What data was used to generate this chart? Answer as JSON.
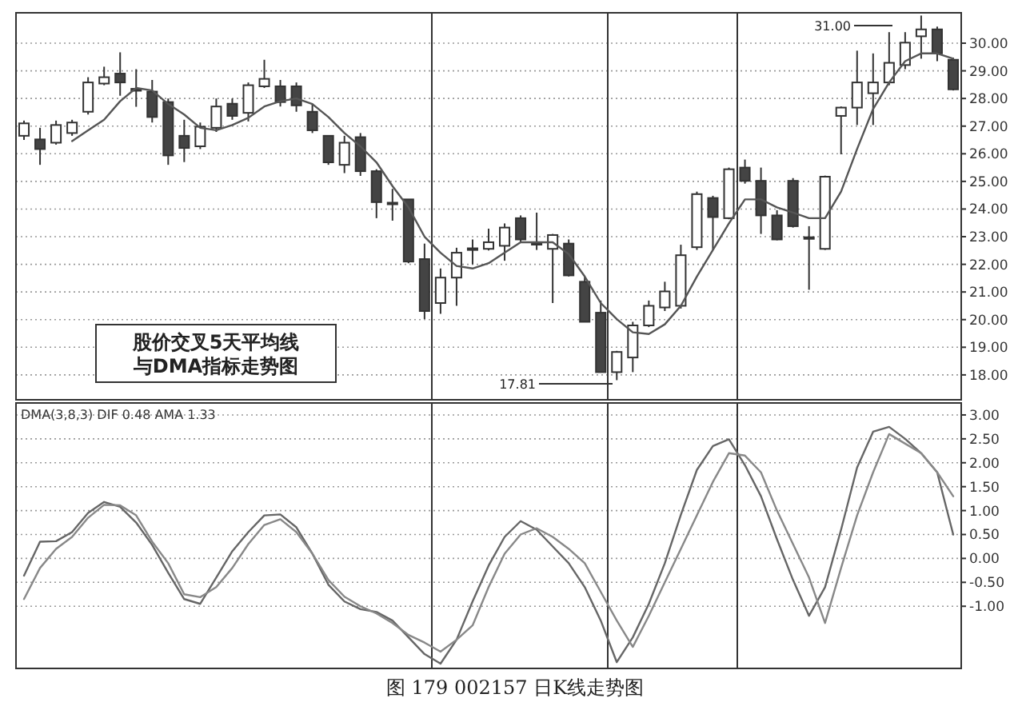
{
  "chart_data": [
    {
      "type": "candlestick",
      "categories": [
        null,
        null,
        null,
        null,
        null,
        null,
        null,
        null,
        null,
        null,
        null,
        null,
        null,
        null,
        null,
        null,
        null,
        null,
        null,
        null,
        null,
        null,
        null,
        null,
        null,
        null,
        null,
        null,
        null,
        null,
        null,
        null,
        null,
        null,
        null,
        null,
        null,
        null,
        null,
        null,
        null,
        null,
        null,
        null,
        null,
        null,
        null,
        null,
        null,
        null,
        null,
        null,
        null,
        null,
        null,
        null,
        null,
        null,
        null
      ],
      "ohlc": [
        [
          26.65,
          27.2,
          26.5,
          27.1
        ],
        [
          26.52,
          26.94,
          25.6,
          26.17
        ],
        [
          26.4,
          27.2,
          26.33,
          27.04
        ],
        [
          26.75,
          27.23,
          26.65,
          27.13
        ],
        [
          27.52,
          28.77,
          27.42,
          28.58
        ],
        [
          28.54,
          29.15,
          28.48,
          28.77
        ],
        [
          28.9,
          29.67,
          28.1,
          28.58
        ],
        [
          28.35,
          29.06,
          27.7,
          28.28
        ],
        [
          28.25,
          28.67,
          27.13,
          27.33
        ],
        [
          27.87,
          28.0,
          25.6,
          25.94
        ],
        [
          26.65,
          27.23,
          25.7,
          26.21
        ],
        [
          26.27,
          27.13,
          26.17,
          26.98
        ],
        [
          26.94,
          28.0,
          26.79,
          27.71
        ],
        [
          27.81,
          28.0,
          27.23,
          27.37
        ],
        [
          27.48,
          28.58,
          27.17,
          28.48
        ],
        [
          28.44,
          29.4,
          28.38,
          28.71
        ],
        [
          28.44,
          28.67,
          27.71,
          27.87
        ],
        [
          28.44,
          28.58,
          27.52,
          27.75
        ],
        [
          27.52,
          27.81,
          26.75,
          26.85
        ],
        [
          26.65,
          26.65,
          25.6,
          25.69
        ],
        [
          25.6,
          26.65,
          25.3,
          26.4
        ],
        [
          26.6,
          26.75,
          25.2,
          25.37
        ],
        [
          25.37,
          25.44,
          23.67,
          24.25
        ],
        [
          24.23,
          24.73,
          23.58,
          24.2
        ],
        [
          24.35,
          24.35,
          22.04,
          22.1
        ],
        [
          22.19,
          22.75,
          20.02,
          20.31
        ],
        [
          20.6,
          21.85,
          20.21,
          21.52
        ],
        [
          21.52,
          22.6,
          20.5,
          22.42
        ],
        [
          22.58,
          22.9,
          22.0,
          22.52
        ],
        [
          22.56,
          23.29,
          22.5,
          22.8
        ],
        [
          22.67,
          23.48,
          22.13,
          23.33
        ],
        [
          23.67,
          23.77,
          22.8,
          22.9
        ],
        [
          22.77,
          23.87,
          22.52,
          22.73
        ],
        [
          22.56,
          23.1,
          20.6,
          23.06
        ],
        [
          22.75,
          22.9,
          21.56,
          21.6
        ],
        [
          21.37,
          21.56,
          19.92,
          19.92
        ],
        [
          20.25,
          20.69,
          18.1,
          18.1
        ],
        [
          18.1,
          18.87,
          17.81,
          18.83
        ],
        [
          18.63,
          19.92,
          18.1,
          19.79
        ],
        [
          19.79,
          20.69,
          19.73,
          20.5
        ],
        [
          20.44,
          21.37,
          20.31,
          21.02
        ],
        [
          20.5,
          22.71,
          20.4,
          22.33
        ],
        [
          22.62,
          24.63,
          22.52,
          24.54
        ],
        [
          24.4,
          24.48,
          22.52,
          23.71
        ],
        [
          23.67,
          25.5,
          23.63,
          25.44
        ],
        [
          25.5,
          25.79,
          24.92,
          25.02
        ],
        [
          25.02,
          25.5,
          23.1,
          23.77
        ],
        [
          23.77,
          23.96,
          22.87,
          22.9
        ],
        [
          25.02,
          25.12,
          23.33,
          23.38
        ],
        [
          22.98,
          23.38,
          21.08,
          22.94
        ],
        [
          22.56,
          25.21,
          22.52,
          25.17
        ],
        [
          27.37,
          27.71,
          25.98,
          27.67
        ],
        [
          27.67,
          29.73,
          27.04,
          28.58
        ],
        [
          28.19,
          29.63,
          27.04,
          28.58
        ],
        [
          28.58,
          30.4,
          28.48,
          29.29
        ],
        [
          29.21,
          30.4,
          29.06,
          30.02
        ],
        [
          30.25,
          31.0,
          29.44,
          30.5
        ],
        [
          30.5,
          30.6,
          29.35,
          29.63
        ],
        [
          29.4,
          29.48,
          28.29,
          28.33
        ]
      ],
      "series": [
        {
          "type": "line",
          "color": "#555555",
          "values": [
            null,
            null,
            null,
            26.46,
            26.85,
            27.23,
            27.9,
            28.38,
            28.29,
            27.8,
            27.42,
            26.94,
            26.85,
            27.04,
            27.3,
            27.71,
            27.9,
            28.0,
            27.8,
            27.33,
            26.75,
            26.27,
            25.69,
            24.83,
            24.06,
            23.0,
            22.42,
            21.94,
            21.85,
            22.04,
            22.42,
            22.8,
            22.8,
            22.8,
            22.37,
            21.56,
            20.6,
            20.02,
            19.54,
            19.48,
            19.83,
            20.5,
            21.56,
            22.52,
            23.48,
            24.35,
            24.35,
            24.06,
            23.87,
            23.67,
            23.67,
            24.63,
            26.17,
            27.62,
            28.58,
            29.35,
            29.63,
            29.63,
            29.44
          ]
        }
      ],
      "ylim": [
        17.1,
        31.1
      ],
      "yticks": [
        {
          "value": 18,
          "label": "18.00"
        },
        {
          "value": 19,
          "label": "19.00"
        },
        {
          "value": 20,
          "label": "20.00"
        },
        {
          "value": 21,
          "label": "21.00"
        },
        {
          "value": 22,
          "label": "22.00"
        },
        {
          "value": 23,
          "label": "23.00"
        },
        {
          "value": 24,
          "label": "24.00"
        },
        {
          "value": 25,
          "label": "25.00"
        },
        {
          "value": 26,
          "label": "26.00"
        },
        {
          "value": 27,
          "label": "27.00"
        },
        {
          "value": 28,
          "label": "28.00"
        },
        {
          "value": 29,
          "label": "29.00"
        },
        {
          "value": 30,
          "label": "30.00"
        }
      ],
      "tick_labels": "y",
      "grid": "y",
      "annotations": [
        "股价交叉5天平均线",
        "与DMA指标走势图",
        "31.00",
        "17.81"
      ]
    },
    {
      "type": "line",
      "title": "DMA(3,8,3) DIF 0.48 AMA 1.33",
      "categories": [
        null,
        null,
        null,
        null,
        null,
        null,
        null,
        null,
        null,
        null,
        null,
        null,
        null,
        null,
        null,
        null,
        null,
        null,
        null,
        null,
        null,
        null,
        null,
        null,
        null,
        null,
        null,
        null,
        null,
        null,
        null,
        null,
        null,
        null,
        null,
        null,
        null,
        null,
        null,
        null,
        null,
        null,
        null,
        null,
        null,
        null,
        null,
        null,
        null,
        null,
        null,
        null,
        null,
        null,
        null,
        null,
        null,
        null,
        null
      ],
      "series": [
        {
          "color": "#666666",
          "values": [
            -0.36,
            0.35,
            0.36,
            0.55,
            0.95,
            1.18,
            1.08,
            0.75,
            0.28,
            -0.3,
            -0.85,
            -0.95,
            -0.4,
            0.15,
            0.55,
            0.9,
            0.92,
            0.65,
            0.1,
            -0.55,
            -0.9,
            -1.06,
            -1.12,
            -1.3,
            -1.65,
            -2.0,
            -2.2,
            -1.7,
            -0.9,
            -0.15,
            0.45,
            0.78,
            0.6,
            0.25,
            -0.1,
            -0.6,
            -1.3,
            -2.17,
            -1.65,
            -0.95,
            -0.1,
            0.91,
            1.85,
            2.35,
            2.49,
            1.95,
            1.3,
            0.4,
            -0.45,
            -1.2,
            -0.6,
            0.6,
            1.9,
            2.65,
            2.75,
            2.5,
            2.2,
            1.8,
            0.5
          ]
        },
        {
          "color": "#888888",
          "values": [
            -0.85,
            -0.2,
            0.2,
            0.45,
            0.85,
            1.12,
            1.11,
            0.9,
            0.35,
            -0.1,
            -0.75,
            -0.81,
            -0.6,
            -0.2,
            0.3,
            0.7,
            0.82,
            0.55,
            0.1,
            -0.45,
            -0.8,
            -1.0,
            -1.15,
            -1.35,
            -1.6,
            -1.76,
            -1.95,
            -1.7,
            -1.4,
            -0.6,
            0.1,
            0.5,
            0.63,
            0.45,
            0.2,
            -0.1,
            -0.7,
            -1.3,
            -1.85,
            -1.2,
            -0.5,
            0.2,
            0.9,
            1.6,
            2.2,
            2.15,
            1.8,
            1.0,
            0.3,
            -0.4,
            -1.35,
            -0.2,
            0.9,
            1.8,
            2.6,
            2.4,
            2.2,
            1.8,
            1.3
          ]
        }
      ],
      "ylim": [
        -2.3,
        3.25
      ],
      "yticks": [
        {
          "value": -1,
          "label": "-1.00"
        },
        {
          "value": -0.5,
          "label": "-0.50"
        },
        {
          "value": 0,
          "label": "0.00"
        },
        {
          "value": 0.5,
          "label": "0.50"
        },
        {
          "value": 1,
          "label": "1.00"
        },
        {
          "value": 1.5,
          "label": "1.50"
        },
        {
          "value": 2,
          "label": "2.00"
        },
        {
          "value": 2.5,
          "label": "2.50"
        },
        {
          "value": 3,
          "label": "3.00"
        }
      ],
      "tick_labels": "y",
      "grid": "y",
      "annotations": [
        "图 179 002157 日K线走势图"
      ]
    }
  ]
}
